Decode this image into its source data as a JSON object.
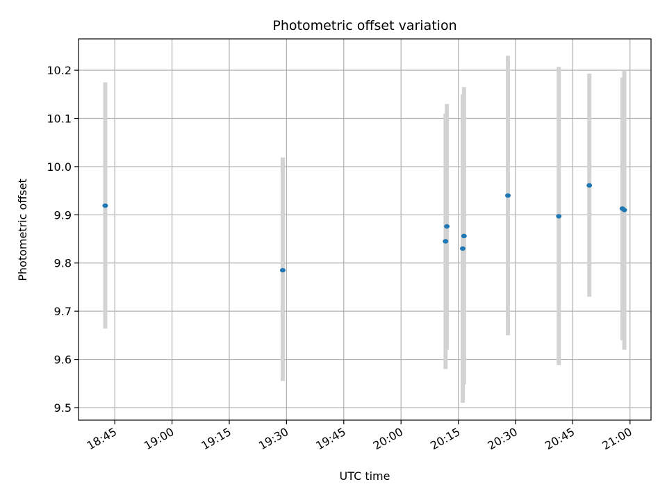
{
  "chart_data": {
    "type": "scatter",
    "title": "Photometric offset variation",
    "xlabel": "UTC time",
    "ylabel": "Photometric offset",
    "x_ticks": [
      "18:45",
      "19:00",
      "19:15",
      "19:30",
      "19:45",
      "20:00",
      "20:15",
      "20:30",
      "20:45",
      "21:00"
    ],
    "y_ticks": [
      "9.5",
      "9.6",
      "9.7",
      "9.8",
      "9.9",
      "10.0",
      "10.1",
      "10.2"
    ],
    "xlim": [
      "18:35:30",
      "21:05:30"
    ],
    "ylim": [
      9.474,
      10.265
    ],
    "grid": true,
    "colors": {
      "points": "#1f77b4",
      "errorbars": "#d3d3d3",
      "grid": "#b0b0b0"
    },
    "points": [
      {
        "time": "18:42:30",
        "y": 9.919,
        "low": 9.664,
        "high": 10.175
      },
      {
        "time": "19:29:00",
        "y": 9.785,
        "low": 9.555,
        "high": 10.019
      },
      {
        "time": "20:11:40",
        "y": 9.845,
        "low": 9.58,
        "high": 10.11
      },
      {
        "time": "20:12:00",
        "y": 9.876,
        "low": 9.62,
        "high": 10.13
      },
      {
        "time": "20:16:10",
        "y": 9.83,
        "low": 9.51,
        "high": 10.15
      },
      {
        "time": "20:16:30",
        "y": 9.856,
        "low": 9.548,
        "high": 10.165
      },
      {
        "time": "20:28:00",
        "y": 9.94,
        "low": 9.65,
        "high": 10.23
      },
      {
        "time": "20:41:20",
        "y": 9.897,
        "low": 9.588,
        "high": 10.207
      },
      {
        "time": "20:49:20",
        "y": 9.961,
        "low": 9.73,
        "high": 10.193
      },
      {
        "time": "20:58:00",
        "y": 9.913,
        "low": 9.64,
        "high": 10.185
      },
      {
        "time": "20:58:30",
        "y": 9.91,
        "low": 9.62,
        "high": 10.2
      }
    ]
  }
}
